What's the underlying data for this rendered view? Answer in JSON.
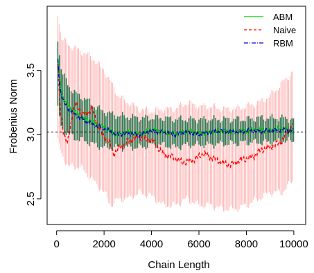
{
  "chart_data": {
    "type": "line",
    "title": "",
    "xlabel": "Chain Length",
    "ylabel": "Frobenius Norm",
    "xlim": [
      -400,
      10500
    ],
    "ylim": [
      2.3,
      4.0
    ],
    "x_ticks": [
      0,
      2000,
      4000,
      6000,
      8000,
      10000
    ],
    "y_ticks": [
      2.5,
      3.0,
      3.5
    ],
    "reference_line": {
      "y": 3.02,
      "style": "dashed",
      "color": "#000000"
    },
    "legend": {
      "position": "top-right",
      "entries": [
        {
          "label": "ABM",
          "color": "#00cc00",
          "dash": "solid"
        },
        {
          "label": "Naive",
          "color": "#ff0000",
          "dash": "dashed"
        },
        {
          "label": "RBM",
          "color": "#0000cc",
          "dash": "dotdash"
        }
      ]
    },
    "series": [
      {
        "name": "ABM",
        "color": "#00cc00",
        "x": [
          50,
          150,
          300,
          500,
          800,
          1100,
          1500,
          2000,
          2500,
          3000,
          3500,
          4000,
          4500,
          5000,
          5500,
          6000,
          6500,
          7000,
          7500,
          8000,
          8500,
          9000,
          9500,
          10000
        ],
        "y": [
          3.6,
          3.38,
          3.28,
          3.22,
          3.17,
          3.13,
          3.1,
          3.06,
          3.0,
          3.02,
          3.0,
          3.04,
          3.02,
          3.0,
          3.03,
          3.01,
          3.02,
          3.03,
          3.02,
          3.03,
          3.04,
          3.03,
          3.05,
          3.03
        ]
      },
      {
        "name": "Naive",
        "color": "#ff0000",
        "x": [
          50,
          150,
          300,
          450,
          550,
          800,
          1100,
          1500,
          1900,
          2200,
          2400,
          2700,
          3000,
          3500,
          4000,
          4500,
          5000,
          5300,
          5700,
          6200,
          6600,
          7000,
          7300,
          7700,
          8200,
          8600,
          9000,
          9500,
          10000
        ],
        "y": [
          3.55,
          3.2,
          3.0,
          2.92,
          3.05,
          3.25,
          3.15,
          3.2,
          3.0,
          2.95,
          2.85,
          2.9,
          2.95,
          2.98,
          2.96,
          2.85,
          2.82,
          2.78,
          2.8,
          2.85,
          2.82,
          2.78,
          2.76,
          2.8,
          2.82,
          2.88,
          2.9,
          2.95,
          3.1
        ]
      },
      {
        "name": "RBM",
        "color": "#0000cc",
        "x": [
          50,
          150,
          300,
          500,
          800,
          1100,
          1500,
          2000,
          2500,
          3000,
          3500,
          4000,
          4500,
          5000,
          5500,
          6000,
          6500,
          7000,
          7500,
          8000,
          8500,
          9000,
          9500,
          10000
        ],
        "y": [
          3.58,
          3.35,
          3.25,
          3.2,
          3.15,
          3.12,
          3.08,
          3.05,
          3.0,
          3.01,
          3.0,
          3.03,
          3.02,
          3.0,
          3.02,
          3.0,
          3.02,
          3.03,
          3.02,
          3.03,
          3.03,
          3.03,
          3.04,
          3.03
        ]
      }
    ],
    "bands": [
      {
        "series": "Naive",
        "color": "#ffb3b3",
        "x": [
          50,
          200,
          500,
          1000,
          1500,
          2000,
          2300,
          2600,
          3000,
          3500,
          4000,
          4500,
          5000,
          5500,
          6000,
          6500,
          7000,
          7500,
          8000,
          8500,
          9000,
          9500,
          10000
        ],
        "lower": [
          2.95,
          2.85,
          2.75,
          2.75,
          2.65,
          2.55,
          2.45,
          2.5,
          2.5,
          2.55,
          2.52,
          2.45,
          2.45,
          2.5,
          2.45,
          2.45,
          2.42,
          2.42,
          2.45,
          2.5,
          2.55,
          2.55,
          2.65
        ],
        "upper": [
          3.95,
          3.75,
          3.7,
          3.65,
          3.6,
          3.5,
          3.4,
          3.3,
          3.25,
          3.2,
          3.18,
          3.2,
          3.2,
          3.25,
          3.22,
          3.22,
          3.2,
          3.2,
          3.22,
          3.25,
          3.3,
          3.4,
          3.5
        ]
      },
      {
        "series": "ABM",
        "color": "#2e7d57",
        "x": [
          50,
          200,
          500,
          800,
          1200,
          1600,
          2000,
          2500,
          3000,
          3500,
          4000,
          4500,
          5000,
          5500,
          6000,
          6500,
          7000,
          7500,
          8000,
          8500,
          9000,
          9500,
          10000
        ],
        "lower": [
          3.2,
          3.05,
          3.0,
          2.97,
          2.95,
          2.92,
          2.9,
          2.9,
          2.9,
          2.9,
          2.92,
          2.92,
          2.9,
          2.92,
          2.92,
          2.92,
          2.93,
          2.93,
          2.94,
          2.94,
          2.94,
          2.95,
          2.95
        ],
        "upper": [
          3.75,
          3.5,
          3.38,
          3.32,
          3.28,
          3.22,
          3.18,
          3.15,
          3.14,
          3.13,
          3.13,
          3.13,
          3.12,
          3.12,
          3.12,
          3.12,
          3.12,
          3.12,
          3.12,
          3.13,
          3.13,
          3.13,
          3.12
        ]
      }
    ]
  }
}
